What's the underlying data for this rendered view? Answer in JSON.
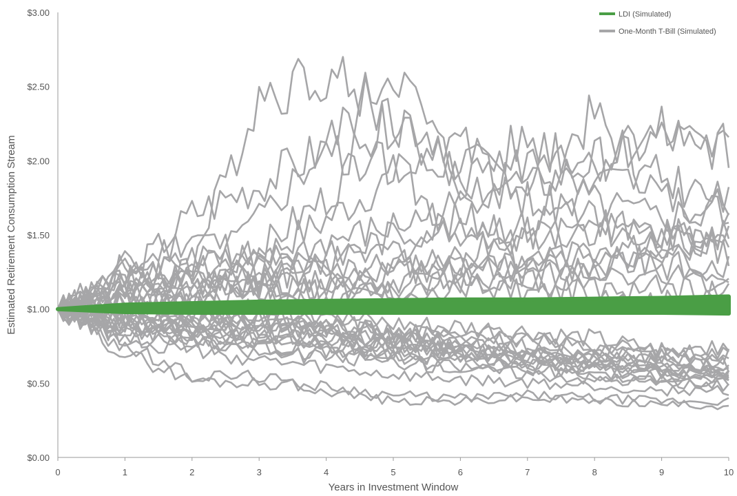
{
  "chart_data": {
    "type": "line",
    "title": "",
    "xlabel": "Years in Investment Window",
    "ylabel": "Estimated Retirement Consumption Stream",
    "xlim": [
      0,
      10
    ],
    "ylim": [
      0,
      3
    ],
    "x_ticks": [
      "0",
      "1",
      "2",
      "3",
      "4",
      "5",
      "6",
      "7",
      "8",
      "9",
      "10"
    ],
    "y_ticks": [
      "$0.00",
      "$0.50",
      "$1.00",
      "$1.50",
      "$2.00",
      "$2.50",
      "$3.00"
    ],
    "grid": false,
    "legend_position": "top-right",
    "legend": [
      {
        "label": "LDI (Simulated)",
        "color": "#4a9e45"
      },
      {
        "label": "One-Month T-Bill (Simulated)",
        "color": "#a6a6a8"
      }
    ],
    "ldi_band": {
      "x": [
        0,
        1,
        2,
        3,
        4,
        5,
        6,
        7,
        8,
        9,
        10
      ],
      "lower": [
        1.0,
        0.98,
        0.975,
        0.975,
        0.975,
        0.975,
        0.975,
        0.975,
        0.975,
        0.975,
        0.97
      ],
      "upper": [
        1.0,
        1.03,
        1.04,
        1.05,
        1.055,
        1.06,
        1.065,
        1.065,
        1.07,
        1.075,
        1.085
      ]
    },
    "series": [
      {
        "values": [
          1.0,
          1.2,
          1.65,
          1.85,
          2.1,
          1.95,
          1.5,
          1.3,
          1.25,
          1.35,
          1.45
        ]
      },
      {
        "values": [
          1.0,
          1.3,
          1.3,
          2.45,
          2.6,
          2.3,
          1.85,
          1.75,
          1.6,
          1.5,
          1.45
        ]
      },
      {
        "values": [
          1.0,
          1.1,
          1.2,
          1.6,
          2.1,
          2.65,
          1.85,
          2.15,
          2.0,
          2.2,
          2.08
        ]
      },
      {
        "values": [
          1.0,
          1.15,
          1.35,
          1.4,
          1.75,
          2.3,
          2.1,
          1.8,
          2.0,
          2.15,
          2.08
        ]
      },
      {
        "values": [
          1.0,
          1.2,
          1.25,
          1.35,
          1.6,
          1.9,
          2.0,
          1.85,
          2.3,
          1.75,
          1.65
        ]
      },
      {
        "values": [
          1.0,
          1.05,
          1.15,
          1.3,
          1.45,
          1.55,
          1.7,
          2.0,
          1.7,
          1.6,
          1.72
        ]
      },
      {
        "values": [
          1.0,
          1.1,
          1.1,
          1.2,
          1.35,
          1.5,
          1.6,
          1.55,
          1.85,
          1.9,
          1.7
        ]
      },
      {
        "values": [
          1.0,
          1.05,
          1.15,
          1.25,
          1.3,
          1.4,
          1.55,
          1.5,
          1.55,
          1.5,
          1.55
        ]
      },
      {
        "values": [
          1.0,
          1.25,
          1.5,
          1.35,
          1.25,
          1.3,
          1.35,
          1.5,
          1.55,
          1.45,
          1.4
        ]
      },
      {
        "values": [
          1.0,
          1.1,
          1.2,
          1.15,
          1.2,
          1.25,
          1.3,
          1.35,
          1.4,
          1.45,
          1.5
        ]
      },
      {
        "values": [
          1.0,
          1.15,
          1.1,
          1.2,
          1.3,
          1.25,
          1.3,
          1.25,
          1.3,
          1.35,
          1.3
        ]
      },
      {
        "values": [
          1.0,
          1.05,
          1.1,
          1.15,
          1.1,
          1.2,
          1.25,
          1.3,
          1.35,
          1.3,
          1.25
        ]
      },
      {
        "values": [
          1.0,
          1.2,
          1.25,
          1.2,
          1.1,
          1.15,
          1.2,
          1.2,
          1.25,
          1.2,
          1.2
        ]
      },
      {
        "values": [
          1.0,
          1.1,
          1.05,
          1.1,
          1.15,
          1.1,
          1.15,
          1.2,
          1.1,
          1.15,
          1.1
        ]
      },
      {
        "values": [
          1.0,
          1.3,
          1.2,
          1.15,
          1.05,
          1.1,
          1.2,
          1.1,
          1.15,
          1.05,
          1.05
        ]
      },
      {
        "values": [
          1.0,
          0.95,
          0.9,
          0.95,
          0.9,
          0.85,
          0.8,
          0.75,
          0.7,
          0.68,
          0.65
        ]
      },
      {
        "values": [
          1.0,
          0.9,
          0.85,
          0.8,
          0.82,
          0.78,
          0.75,
          0.7,
          0.68,
          0.65,
          0.62
        ]
      },
      {
        "values": [
          1.0,
          0.95,
          0.92,
          0.88,
          0.85,
          0.8,
          0.72,
          0.68,
          0.62,
          0.6,
          0.58
        ]
      },
      {
        "values": [
          1.0,
          0.85,
          0.8,
          0.78,
          0.75,
          0.72,
          0.7,
          0.65,
          0.6,
          0.58,
          0.56
        ]
      },
      {
        "values": [
          1.0,
          0.92,
          0.88,
          0.85,
          0.8,
          0.78,
          0.7,
          0.66,
          0.63,
          0.6,
          0.55
        ]
      },
      {
        "values": [
          1.0,
          0.9,
          0.82,
          0.78,
          0.72,
          0.7,
          0.65,
          0.62,
          0.58,
          0.56,
          0.54
        ]
      },
      {
        "values": [
          1.0,
          0.88,
          0.8,
          0.75,
          0.7,
          0.66,
          0.62,
          0.6,
          0.57,
          0.55,
          0.52
        ]
      },
      {
        "values": [
          1.0,
          0.95,
          0.85,
          0.82,
          0.75,
          0.7,
          0.68,
          0.6,
          0.55,
          0.52,
          0.5
        ]
      },
      {
        "values": [
          1.0,
          0.82,
          0.75,
          0.7,
          0.68,
          0.65,
          0.6,
          0.57,
          0.53,
          0.5,
          0.48
        ]
      },
      {
        "values": [
          1.0,
          0.8,
          0.72,
          0.65,
          0.6,
          0.55,
          0.52,
          0.5,
          0.48,
          0.45,
          0.45
        ]
      },
      {
        "values": [
          1.0,
          0.75,
          0.55,
          0.55,
          0.45,
          0.38,
          0.38,
          0.4,
          0.38,
          0.36,
          0.35
        ]
      },
      {
        "values": [
          1.0,
          0.7,
          0.52,
          0.5,
          0.48,
          0.42,
          0.4,
          0.42,
          0.4,
          0.38,
          0.38
        ]
      },
      {
        "values": [
          1.0,
          0.98,
          0.95,
          0.9,
          0.88,
          0.82,
          0.75,
          0.72,
          0.7,
          0.68,
          0.75
        ]
      },
      {
        "values": [
          1.0,
          1.02,
          0.95,
          1.0,
          0.92,
          0.85,
          0.8,
          0.78,
          0.75,
          0.72,
          0.7
        ]
      },
      {
        "values": [
          1.0,
          0.92,
          0.9,
          0.92,
          0.95,
          0.9,
          0.88,
          0.85,
          0.8,
          0.72,
          0.68
        ]
      },
      {
        "values": [
          1.0,
          0.88,
          0.92,
          0.96,
          0.88,
          0.82,
          0.85,
          0.8,
          0.72,
          0.66,
          0.62
        ]
      },
      {
        "values": [
          1.0,
          1.05,
          0.98,
          0.93,
          0.85,
          0.78,
          0.72,
          0.68,
          0.66,
          0.64,
          0.6
        ]
      },
      {
        "values": [
          1.0,
          0.93,
          0.86,
          0.9,
          0.84,
          0.76,
          0.74,
          0.7,
          0.66,
          0.6,
          0.57
        ]
      },
      {
        "values": [
          1.0,
          0.85,
          0.88,
          0.82,
          0.8,
          0.74,
          0.7,
          0.64,
          0.6,
          0.58,
          0.52
        ]
      }
    ]
  }
}
